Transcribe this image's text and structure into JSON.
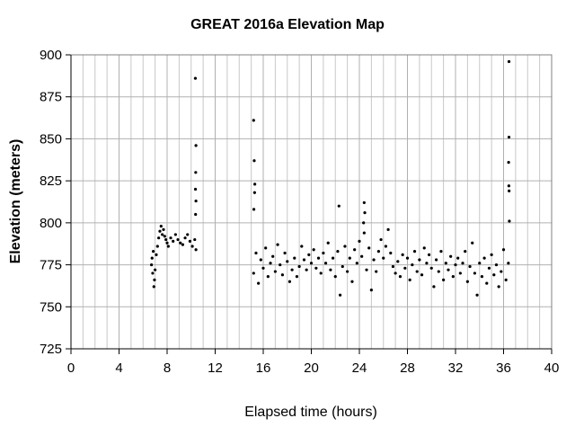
{
  "chart_data": {
    "type": "scatter",
    "title": "GREAT 2016a Elevation Map",
    "x_label": "Elapsed time (hours)",
    "y_label": "Elevation (meters)",
    "color": "#000000",
    "grid": true,
    "xlim": [
      0,
      40
    ],
    "ylim": [
      725,
      900
    ],
    "xticks": [
      0,
      4,
      8,
      12,
      16,
      20,
      24,
      28,
      32,
      36,
      40
    ],
    "xminor": [
      1,
      2,
      3,
      5,
      6,
      7,
      9,
      10,
      11,
      13,
      14,
      15,
      17,
      18,
      19,
      21,
      22,
      23,
      25,
      26,
      27,
      29,
      30,
      31,
      33,
      34,
      35,
      37,
      38,
      39
    ],
    "yticks": [
      725,
      750,
      775,
      800,
      825,
      850,
      875,
      900
    ],
    "x": [
      6.7,
      6.75,
      6.8,
      6.85,
      6.9,
      6.95,
      7.0,
      7.1,
      7.2,
      7.3,
      7.4,
      7.5,
      7.6,
      7.7,
      7.8,
      7.9,
      8.0,
      8.1,
      8.3,
      8.5,
      8.7,
      8.9,
      9.1,
      9.3,
      9.5,
      9.7,
      9.9,
      10.1,
      10.3,
      10.4,
      10.35,
      10.4,
      10.38,
      10.36,
      10.4,
      10.37,
      15.2,
      15.4,
      15.6,
      15.8,
      16.0,
      16.2,
      16.4,
      16.6,
      16.8,
      17.0,
      17.2,
      17.4,
      17.6,
      17.8,
      18.0,
      18.2,
      18.4,
      18.6,
      18.8,
      19.0,
      19.2,
      19.4,
      19.6,
      19.8,
      20.0,
      20.2,
      20.4,
      20.6,
      20.8,
      21.0,
      21.2,
      21.4,
      21.6,
      21.8,
      22.0,
      22.2,
      22.4,
      22.6,
      22.8,
      23.0,
      23.2,
      23.4,
      23.6,
      23.8,
      24.0,
      24.2,
      24.4,
      24.6,
      24.8,
      25.0,
      25.2,
      25.4,
      25.6,
      25.8,
      26.0,
      26.2,
      26.4,
      26.6,
      26.8,
      27.0,
      27.2,
      27.4,
      27.6,
      27.8,
      28.0,
      28.2,
      28.4,
      28.6,
      28.8,
      29.0,
      29.2,
      29.4,
      29.6,
      29.8,
      30.0,
      30.2,
      30.4,
      30.6,
      30.8,
      31.0,
      31.2,
      31.4,
      31.6,
      31.8,
      32.0,
      32.2,
      32.4,
      32.6,
      32.8,
      33.0,
      33.2,
      33.4,
      33.6,
      33.8,
      34.0,
      34.2,
      34.4,
      34.6,
      34.8,
      35.0,
      35.2,
      35.4,
      35.6,
      35.8,
      36.0,
      36.2,
      36.4,
      15.2,
      15.25,
      15.3,
      15.28,
      15.22,
      22.3,
      24.4,
      24.45,
      24.35,
      36.45,
      36.45,
      36.42,
      36.44,
      36.46,
      36.48
    ],
    "values": [
      775,
      779,
      770,
      783,
      762,
      766,
      772,
      781,
      786,
      791,
      795,
      798,
      793,
      796,
      792,
      790,
      788,
      786,
      791,
      789,
      793,
      790,
      788,
      787,
      791,
      793,
      789,
      786,
      790,
      784,
      886,
      846,
      830,
      820,
      813,
      805,
      770,
      782,
      764,
      778,
      773,
      785,
      768,
      776,
      780,
      771,
      787,
      775,
      769,
      782,
      777,
      765,
      772,
      779,
      768,
      774,
      786,
      778,
      772,
      781,
      776,
      784,
      773,
      779,
      770,
      782,
      776,
      788,
      772,
      779,
      768,
      783,
      757,
      774,
      786,
      771,
      779,
      765,
      784,
      776,
      789,
      780,
      794,
      772,
      785,
      760,
      778,
      771,
      783,
      790,
      779,
      786,
      796,
      782,
      774,
      770,
      777,
      768,
      781,
      773,
      779,
      766,
      775,
      783,
      771,
      778,
      769,
      785,
      776,
      781,
      773,
      762,
      778,
      771,
      783,
      766,
      776,
      772,
      780,
      768,
      775,
      779,
      770,
      776,
      783,
      765,
      774,
      788,
      770,
      757,
      776,
      768,
      779,
      764,
      773,
      781,
      769,
      775,
      762,
      771,
      784,
      766,
      776,
      861,
      837,
      823,
      818,
      808,
      810,
      812,
      806,
      800,
      896,
      851,
      836,
      822,
      819,
      801
    ]
  }
}
